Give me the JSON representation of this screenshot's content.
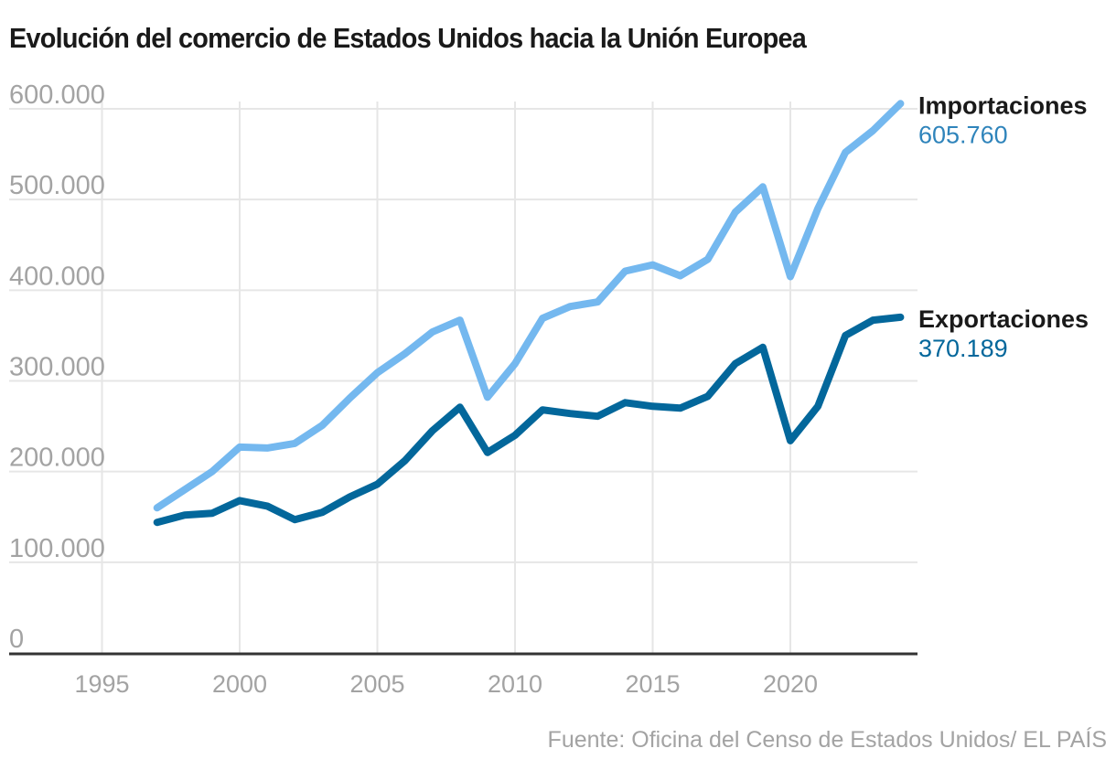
{
  "chart_data": {
    "type": "line",
    "title": "Evolución del comercio de Estados Unidos hacia la Unión Europea",
    "xlabel": "",
    "ylabel": "",
    "xlim": [
      1990,
      2025
    ],
    "ylim": [
      0,
      600000
    ],
    "grid": true,
    "y_ticks": [
      0,
      100000,
      200000,
      300000,
      400000,
      500000,
      600000
    ],
    "y_tick_labels": [
      "0",
      "100.000",
      "200.000",
      "300.000",
      "400.000",
      "500.000",
      "600.000"
    ],
    "x_ticks": [
      1995,
      2000,
      2005,
      2010,
      2015,
      2020
    ],
    "x_tick_labels": [
      "1995",
      "2000",
      "2005",
      "2010",
      "2015",
      "2020"
    ],
    "x": [
      1997,
      1998,
      1999,
      2000,
      2001,
      2002,
      2003,
      2004,
      2005,
      2006,
      2007,
      2008,
      2009,
      2010,
      2011,
      2012,
      2013,
      2014,
      2015,
      2016,
      2017,
      2018,
      2019,
      2020,
      2021,
      2022,
      2023,
      2024
    ],
    "series": [
      {
        "name": "Importaciones",
        "end_label": "605.760",
        "color": "#74b8ef",
        "label_color": "#2f84bb",
        "values": [
          160000,
          180000,
          200000,
          227000,
          226000,
          231000,
          251000,
          281000,
          309000,
          330000,
          354000,
          367000,
          282000,
          319000,
          369000,
          382000,
          387000,
          421000,
          428000,
          416000,
          434000,
          486000,
          514000,
          415000,
          490000,
          552000,
          576000,
          605760
        ]
      },
      {
        "name": "Exportaciones",
        "end_label": "370.189",
        "color": "#03679b",
        "label_color": "#03679b",
        "values": [
          144000,
          152000,
          154000,
          168000,
          162000,
          147000,
          155000,
          172000,
          186000,
          212000,
          245000,
          271000,
          221000,
          240000,
          268000,
          264000,
          261000,
          276000,
          272000,
          270000,
          283000,
          319000,
          337000,
          234000,
          272000,
          350000,
          367000,
          370189
        ]
      }
    ],
    "legend": "end-of-line labels (right)",
    "source": "Fuente: Oficina del Censo de Estados Unidos/ EL PAÍS",
    "colors": {
      "grid": "#e6e6e6",
      "axis": "#333333",
      "tick_text": "#a3a3a3"
    }
  }
}
